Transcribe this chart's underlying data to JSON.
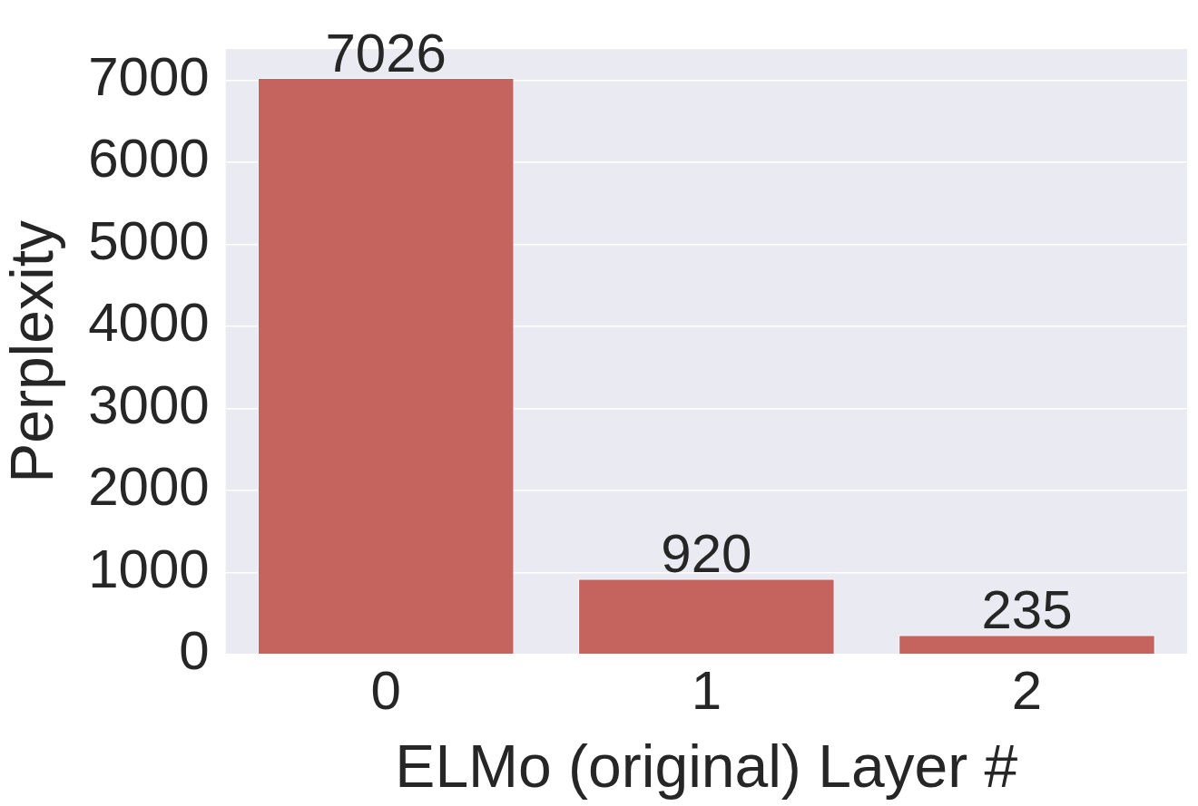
{
  "chart_data": {
    "type": "bar",
    "xlabel": "ELMo (original) Layer #",
    "ylabel": "Perplexity",
    "categories": [
      "0",
      "1",
      "2"
    ],
    "values": [
      7026,
      920,
      235
    ],
    "color": "#c5645f",
    "ylim": [
      0,
      7380
    ],
    "yticks": [
      0,
      1000,
      2000,
      3000,
      4000,
      5000,
      6000,
      7000
    ],
    "grid": "y",
    "legend": false,
    "data_labels": true
  }
}
